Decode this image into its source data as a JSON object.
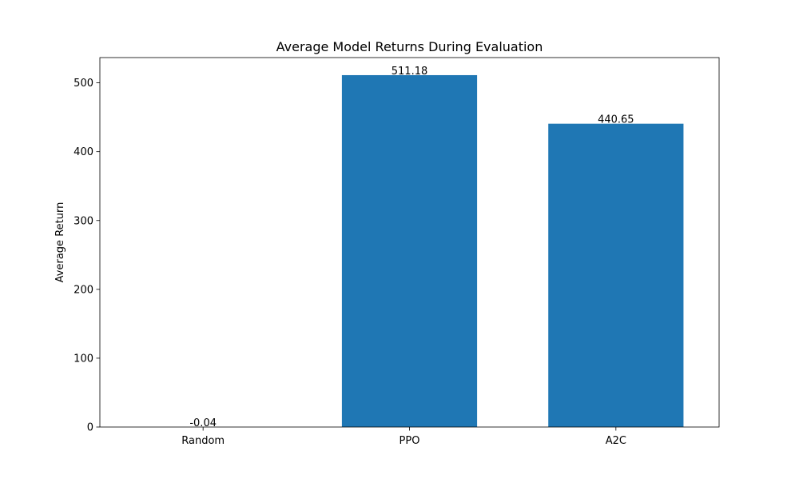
{
  "chart_data": {
    "type": "bar",
    "title": "Average Model Returns During Evaluation",
    "xlabel": "",
    "ylabel": "Average Return",
    "categories": [
      "Random",
      "PPO",
      "A2C"
    ],
    "values": [
      -0.04,
      511.18,
      440.65
    ],
    "value_labels": [
      "-0.04",
      "511.18",
      "440.65"
    ],
    "yticks": [
      0,
      100,
      200,
      300,
      400,
      500
    ],
    "ylim": [
      0,
      536.7
    ],
    "grid": false,
    "bar_color": "#1f77b4"
  }
}
